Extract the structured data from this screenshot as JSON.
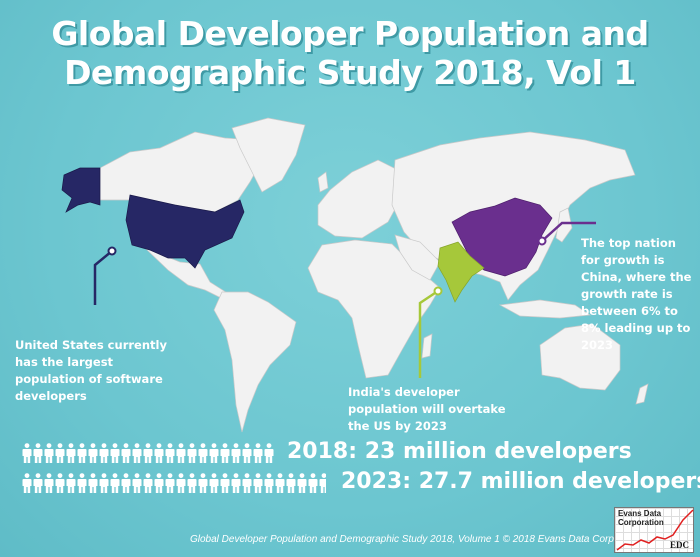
{
  "title": {
    "line1": "Global Developer Population and",
    "line2": "Demographic Study 2018, Vol 1"
  },
  "colors": {
    "background": "#6cc6d0",
    "land": "#f2f2f2",
    "us": "#262765",
    "china": "#6a2f8e",
    "india": "#a6c83a"
  },
  "annotations": {
    "us": "United States currently has the largest population of software developers",
    "india": "India's developer population will overtake the US by 2023",
    "china": "The top nation for growth is China, where the growth rate is between 6% to 8% leading up to 2023"
  },
  "stats": [
    {
      "label": "2018: 23 million developers",
      "icon": "person-icon",
      "count": 23
    },
    {
      "label": "2023: 27.7 million developers",
      "icon": "person-icon",
      "count": 27.7
    }
  ],
  "footer": "Global Developer Population and Demographic Study 2018, Volume 1 © 2018 Evans Data Corp",
  "logo": {
    "name": "Evans Data Corporation",
    "abbr": "EDC"
  }
}
